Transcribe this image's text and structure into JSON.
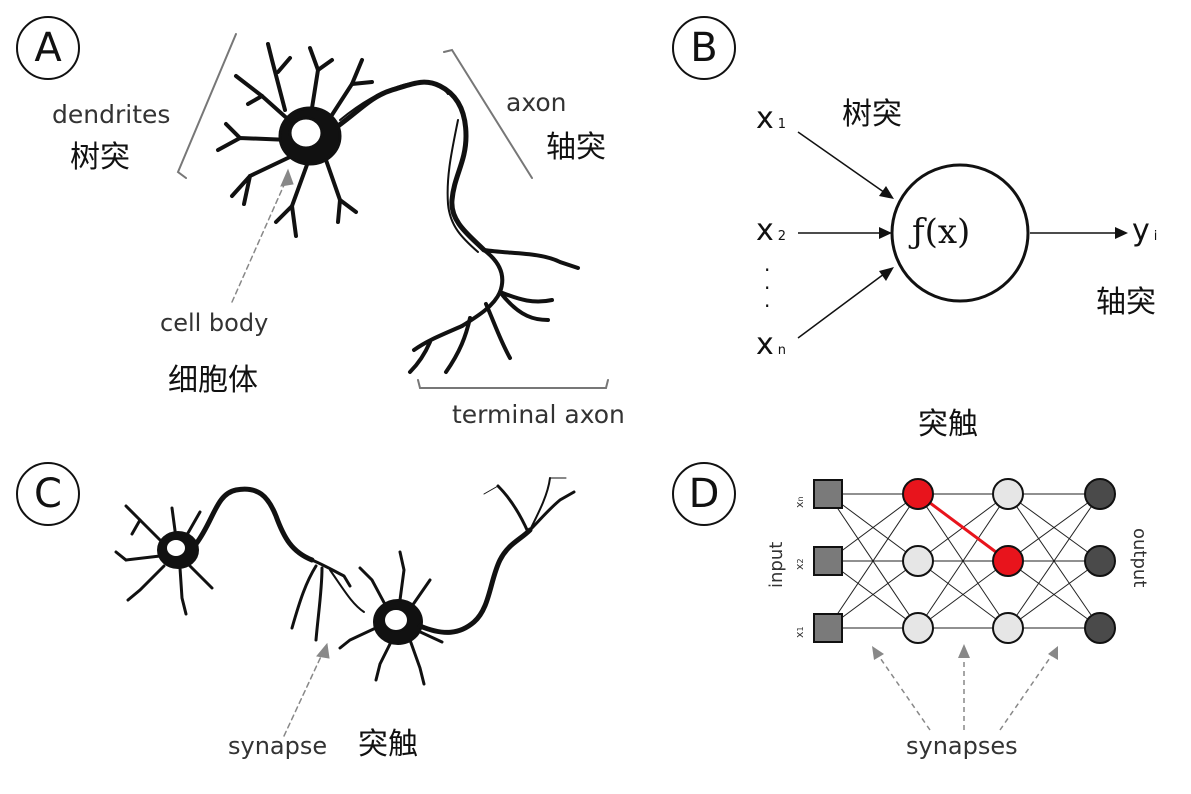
{
  "panels": {
    "A": {
      "letter": "A",
      "dendrites_en": "dendrites",
      "dendrites_zh": "树突",
      "axon_en": "axon",
      "axon_zh": "轴突",
      "cell_body_en": "cell body",
      "cell_body_zh": "细胞体",
      "terminal_axon_en": "terminal axon"
    },
    "B": {
      "letter": "B",
      "inputs": [
        {
          "base": "x",
          "sub": "1"
        },
        {
          "base": "x",
          "sub": "2"
        },
        {
          "base": "x",
          "sub": "n"
        }
      ],
      "dots": "·",
      "dendrites_zh": "树突",
      "function": "ƒ(x)",
      "output": {
        "base": "y",
        "sub": "i"
      },
      "axon_zh": "轴突"
    },
    "C": {
      "letter": "C",
      "synapse_en": "synapse",
      "synapse_zh": "突触"
    },
    "D": {
      "letter": "D",
      "title_zh": "突触",
      "input_label": "input",
      "output_label": "output",
      "input_nodes": [
        {
          "base": "x",
          "sub": "n"
        },
        {
          "base": "x",
          "sub": "2"
        },
        {
          "base": "x",
          "sub": "1"
        }
      ],
      "synapses_en": "synapses",
      "colors": {
        "input_node": "#7a7a7a",
        "hidden_node": "#e6e6e6",
        "highlight_node": "#e8141c",
        "highlight_edge": "#e8141c",
        "output_node": "#4a4a4a"
      }
    }
  }
}
